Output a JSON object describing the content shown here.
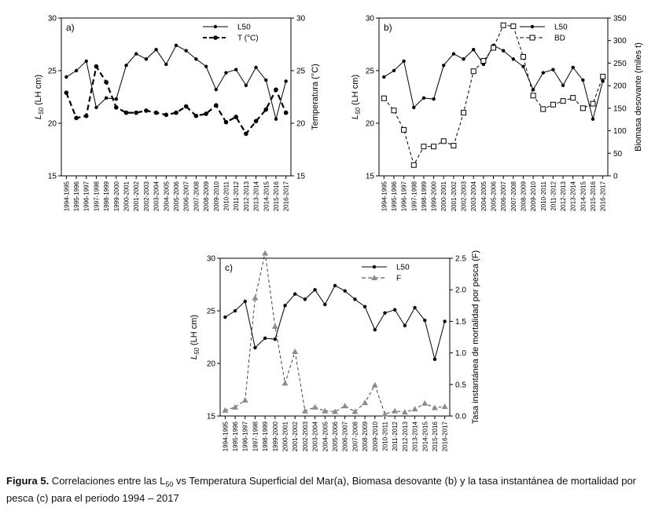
{
  "chart_data": [
    {
      "type": "line",
      "panel_label": "a)",
      "categories": [
        "1994-1995",
        "1995-1996",
        "1996-1997",
        "1997-1998",
        "1998-1999",
        "1999-2000",
        "2000-2001",
        "2001-2002",
        "2002-2003",
        "2003-2004",
        "2004-2005",
        "2005-2006",
        "2006-2007",
        "2007-2008",
        "2008-2009",
        "2009-2010",
        "2010-2011",
        "2011-2012",
        "2012-2013",
        "2013-2014",
        "2014-2015",
        "2015-2016",
        "2016-2017"
      ],
      "ylabel_main": "L",
      "ylabel_sub": "50",
      "ylabel_unit": " (LH cm)",
      "ylim": [
        15,
        30
      ],
      "yticks": [
        15,
        20,
        25,
        30
      ],
      "y2label": "Temperatura (°C)",
      "y2lim": [
        15,
        30
      ],
      "y2ticks": [
        15,
        20,
        25,
        30
      ],
      "legend_position": "top-right",
      "series": [
        {
          "name": "L50",
          "axis": "left",
          "style": "solid-dot",
          "values": [
            24.4,
            25.0,
            25.9,
            21.5,
            22.4,
            22.3,
            25.5,
            26.6,
            26.1,
            27.0,
            25.6,
            27.4,
            26.9,
            26.1,
            25.4,
            23.2,
            24.8,
            25.1,
            23.6,
            25.3,
            24.1,
            20.4,
            24.0
          ]
        },
        {
          "name": "T (°C)",
          "axis": "right",
          "style": "dashed-dot",
          "values": [
            22.9,
            20.5,
            20.7,
            25.4,
            23.9,
            21.5,
            21.0,
            21.0,
            21.2,
            21.0,
            20.8,
            21.0,
            21.6,
            20.7,
            20.9,
            21.7,
            20.1,
            20.6,
            19.0,
            20.2,
            21.3,
            23.2,
            21.0
          ]
        }
      ]
    },
    {
      "type": "line",
      "panel_label": "b)",
      "categories": [
        "1994-1995",
        "1995-1996",
        "1996-1997",
        "1997-1998",
        "1998-1999",
        "1999-2000",
        "2000-2001",
        "2001-2002",
        "2002-2003",
        "2003-2004",
        "2004-2005",
        "2005-2006",
        "2006-2007",
        "2007-2008",
        "2008-2009",
        "2009-2010",
        "2010-2011",
        "2011-2012",
        "2012-2013",
        "2013-2014",
        "2014-2015",
        "2015-2016",
        "2016-2017"
      ],
      "ylabel_main": "L",
      "ylabel_sub": "50",
      "ylabel_unit": " (LH cm)",
      "ylim": [
        15,
        30
      ],
      "yticks": [
        15,
        20,
        25,
        30
      ],
      "y2label": "Biomasa desovante (miles t)",
      "y2lim": [
        0,
        350
      ],
      "y2ticks": [
        0,
        50,
        100,
        150,
        200,
        250,
        300,
        350
      ],
      "legend_position": "top-right",
      "series": [
        {
          "name": "L50",
          "axis": "left",
          "style": "solid-dot",
          "values": [
            24.4,
            25.0,
            25.9,
            21.5,
            22.4,
            22.3,
            25.5,
            26.6,
            26.1,
            27.0,
            25.6,
            27.4,
            26.9,
            26.1,
            25.4,
            23.2,
            24.8,
            25.1,
            23.6,
            25.3,
            24.1,
            20.4,
            24.0
          ]
        },
        {
          "name": "BD",
          "axis": "right",
          "style": "dashed-square",
          "values": [
            172,
            145,
            102,
            24,
            65,
            65,
            77,
            67,
            140,
            232,
            255,
            284,
            334,
            332,
            264,
            178,
            148,
            158,
            166,
            173,
            150,
            160,
            220
          ]
        }
      ]
    },
    {
      "type": "line",
      "panel_label": "c)",
      "categories": [
        "1994-1995",
        "1995-1996",
        "1996-1997",
        "1997-1998",
        "1998-1999",
        "1999-2000",
        "2000-2001",
        "2001-2002",
        "2002-2003",
        "2003-2004",
        "2004-2005",
        "2005-2006",
        "2006-2007",
        "2007-2008",
        "2008-2009",
        "2009-2010",
        "2010-2011",
        "2011-2012",
        "2012-2013",
        "2013-2014",
        "2014-2015",
        "2015-2016",
        "2016-2017"
      ],
      "ylabel_main": "L",
      "ylabel_sub": "50",
      "ylabel_unit": " (LH cm)",
      "ylim": [
        15,
        30
      ],
      "yticks": [
        15,
        20,
        25,
        30
      ],
      "y2label": "Tasa instantánea de mortalidad por pesca (F)",
      "y2lim": [
        0,
        2.5
      ],
      "y2ticks": [
        0.0,
        0.5,
        1.0,
        1.5,
        2.0,
        2.5
      ],
      "legend_position": "top-right",
      "series": [
        {
          "name": "L50",
          "axis": "left",
          "style": "solid-dot",
          "values": [
            24.4,
            25.0,
            25.9,
            21.5,
            22.4,
            22.3,
            25.5,
            26.6,
            26.1,
            27.0,
            25.6,
            27.4,
            26.9,
            26.1,
            25.4,
            23.2,
            24.8,
            25.1,
            23.6,
            25.3,
            24.1,
            20.4,
            24.0
          ]
        },
        {
          "name": "F",
          "axis": "right",
          "style": "dashed-triangle",
          "values": [
            0.09,
            0.14,
            0.25,
            1.87,
            2.58,
            1.42,
            0.52,
            1.02,
            0.08,
            0.14,
            0.08,
            0.07,
            0.16,
            0.07,
            0.21,
            0.49,
            0.03,
            0.08,
            0.06,
            0.11,
            0.2,
            0.13,
            0.15
          ]
        }
      ]
    }
  ],
  "caption": {
    "bold": "Figura 5.",
    "text1": " Correlaciones entre las L",
    "sub": "50",
    "text2": " vs Temperatura Superficial del Mar(a), Biomasa desovante (b) y la tasa instantánea de mortalidad por pesca (c) para el periodo 1994 – 2017"
  },
  "colors": {
    "axis": "#000000",
    "series_main": "#000000",
    "series_f": "#8c8c8c"
  }
}
